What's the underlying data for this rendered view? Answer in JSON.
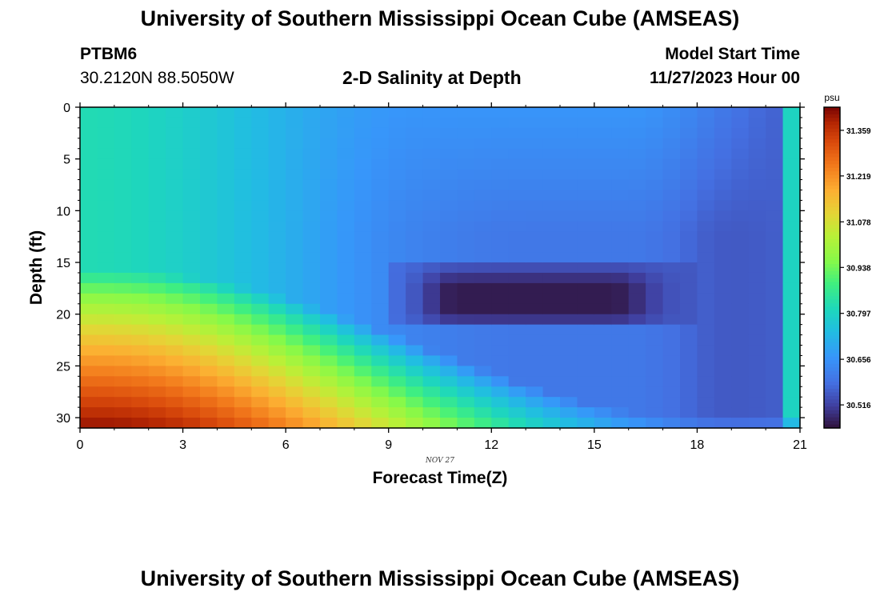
{
  "header": {
    "title": "University of Southern Mississippi Ocean Cube (AMSEAS)",
    "station_id": "PTBM6",
    "coordinates": "30.2120N  88.5050W",
    "chart_title": "2-D Salinity at Depth",
    "start_label": "Model Start Time",
    "start_value": "11/27/2023 Hour 00"
  },
  "footer": {
    "title": "University of Southern Mississippi Ocean Cube (AMSEAS)"
  },
  "chart_data": {
    "type": "heatmap",
    "title": "2-D Salinity at Depth",
    "xlabel": "Forecast Time(Z)",
    "ylabel": "Depth (ft)",
    "date_label": "NOV 27",
    "xlim": [
      0,
      21
    ],
    "ylim": [
      0,
      31
    ],
    "y_inverted": true,
    "x_ticks": [
      0,
      3,
      6,
      9,
      12,
      15,
      18,
      21
    ],
    "y_ticks": [
      0,
      5,
      10,
      15,
      20,
      25,
      30
    ],
    "x_step": 0.5,
    "depth_step": 1,
    "colorbar": {
      "unit": "psu",
      "min": 30.445,
      "max": 31.43,
      "ticks": [
        31.359,
        31.219,
        31.078,
        30.938,
        30.797,
        30.656,
        30.516
      ]
    },
    "field_model": {
      "description": "Approximate salinity (psu) over forecast time 0-21h and depth 0-31ft",
      "base_surface": 30.82,
      "base_mid": 30.66,
      "base_late": 30.56,
      "deep_max": 31.41,
      "low_core_min": 30.46,
      "low_core_depth_range": [
        15.5,
        21
      ],
      "low_core_time_range": [
        9,
        18
      ]
    }
  }
}
